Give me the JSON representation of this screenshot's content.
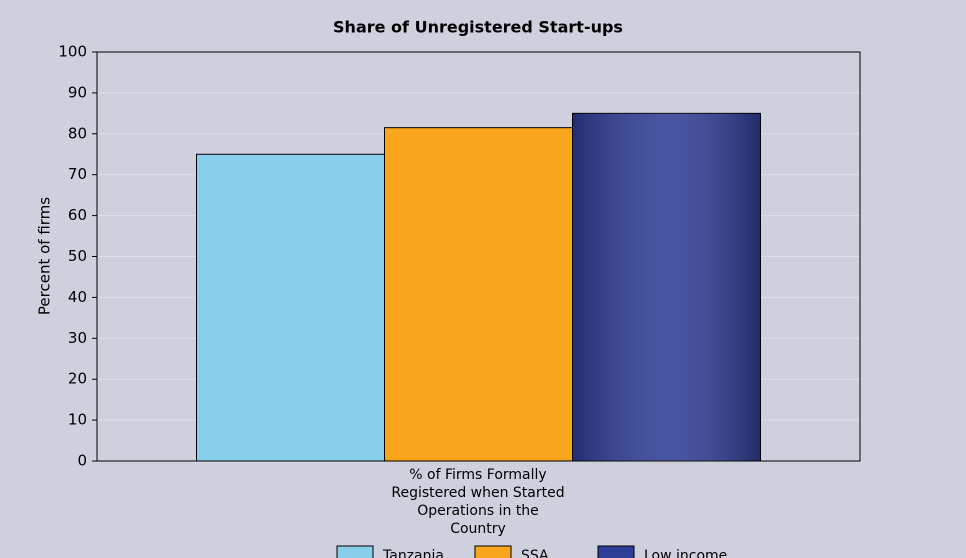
{
  "chart_data": {
    "type": "bar",
    "title": "Share of Unregistered Start-ups",
    "y_label": "Percent of firms",
    "categories": [
      "% of Firms Formally Registered when Started Operations in the Country"
    ],
    "series": [
      {
        "name": "Tanzania",
        "color": "#87ceeb",
        "values": [
          75
        ]
      },
      {
        "name": "SSA",
        "color": "#f9a61c",
        "values": [
          81.5
        ]
      },
      {
        "name": "Low income",
        "color": "#2e3d96",
        "values": [
          85
        ]
      }
    ],
    "ylim": [
      0,
      100
    ],
    "yticks": [
      0,
      10,
      20,
      30,
      40,
      50,
      60,
      70,
      80,
      90,
      100
    ],
    "grid": true,
    "legend": "bottom"
  }
}
